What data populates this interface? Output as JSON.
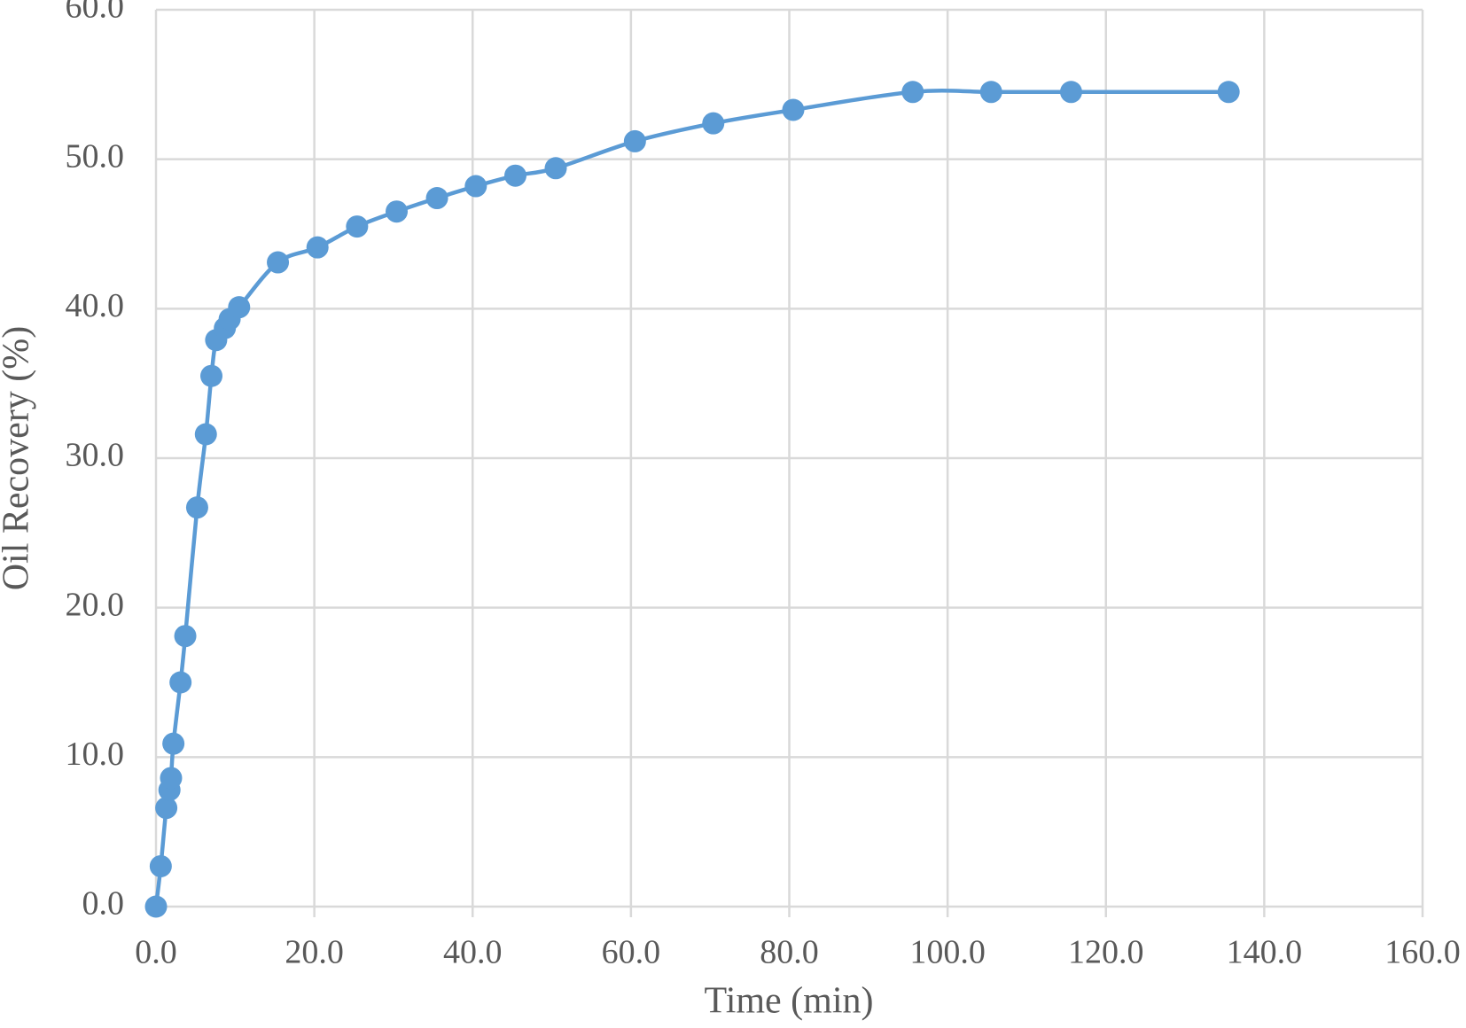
{
  "chart_data": {
    "type": "line",
    "x_label": "Time (min)",
    "y_label": "Oil Recovery (%)",
    "x": [
      0,
      0.6,
      1.3,
      1.7,
      1.9,
      2.2,
      3.1,
      3.7,
      5.2,
      6.3,
      7.0,
      7.6,
      8.7,
      9.3,
      10.5,
      15.4,
      20.4,
      25.4,
      30.4,
      35.5,
      40.4,
      45.4,
      50.5,
      60.5,
      70.4,
      80.5,
      95.6,
      105.5,
      115.6,
      135.5
    ],
    "series": [
      {
        "color": "#5b9bd5",
        "values": [
          0,
          2.7,
          6.6,
          7.8,
          8.6,
          10.9,
          15.0,
          18.1,
          26.7,
          31.6,
          35.5,
          37.9,
          38.7,
          39.3,
          40.1,
          43.1,
          44.1,
          45.5,
          46.5,
          47.4,
          48.2,
          48.9,
          49.4,
          51.2,
          52.4,
          53.3,
          54.5,
          54.5,
          54.5,
          54.5
        ]
      }
    ],
    "xlim": [
      0,
      160
    ],
    "xticks": [
      {
        "value": 0,
        "label": "0.0"
      },
      {
        "value": 20,
        "label": "20.0"
      },
      {
        "value": 40,
        "label": "40.0"
      },
      {
        "value": 60,
        "label": "60.0"
      },
      {
        "value": 80,
        "label": "80.0"
      },
      {
        "value": 100,
        "label": "100.0"
      },
      {
        "value": 120,
        "label": "120.0"
      },
      {
        "value": 140,
        "label": "140.0"
      },
      {
        "value": 160,
        "label": "160.0"
      }
    ],
    "ylim": [
      0,
      60
    ],
    "yticks": [
      {
        "value": 0,
        "label": "0.0"
      },
      {
        "value": 10,
        "label": "10.0"
      },
      {
        "value": 20,
        "label": "20.0"
      },
      {
        "value": 30,
        "label": "30.0"
      },
      {
        "value": 40,
        "label": "40.0"
      },
      {
        "value": 50,
        "label": "50.0"
      },
      {
        "value": 60,
        "label": "60.0"
      }
    ],
    "grid": true,
    "smooth": true
  }
}
